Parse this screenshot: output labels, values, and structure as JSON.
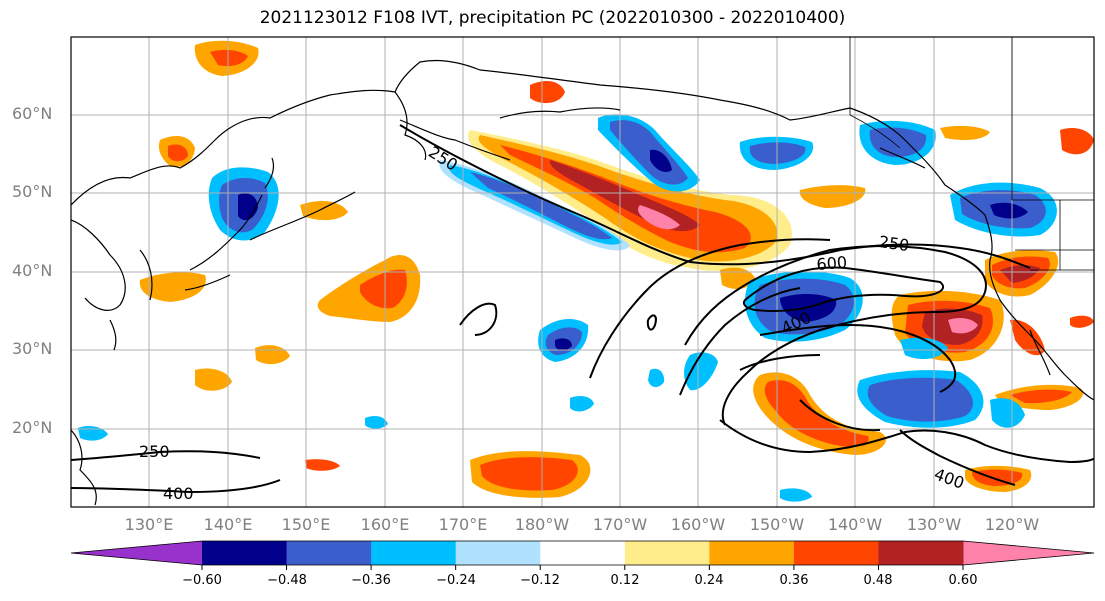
{
  "title": "2021123012 F108 IVT, precipitation PC (2022010300 - 2022010400)",
  "lat_labels": [
    "60°N",
    "50°N",
    "40°N",
    "30°N",
    "20°N"
  ],
  "lon_labels": [
    "130°E",
    "140°E",
    "150°E",
    "160°E",
    "170°E",
    "180°W",
    "170°W",
    "160°W",
    "150°W",
    "140°W",
    "130°W",
    "120°W"
  ],
  "contour_labels": [
    "250",
    "250",
    "600",
    "400",
    "400",
    "250",
    "400"
  ],
  "colorbar": {
    "ticks": [
      "−0.60",
      "−0.48",
      "−0.36",
      "−0.24",
      "−0.12",
      "0.12",
      "0.24",
      "0.36",
      "0.48",
      "0.60"
    ],
    "colors": [
      "#9932cc",
      "#00008b",
      "#3a5fcd",
      "#00bfff",
      "#b0e2ff",
      "#ffffff",
      "#ffec8b",
      "#ffa500",
      "#ff4500",
      "#b22222",
      "#ff82ab"
    ]
  }
}
